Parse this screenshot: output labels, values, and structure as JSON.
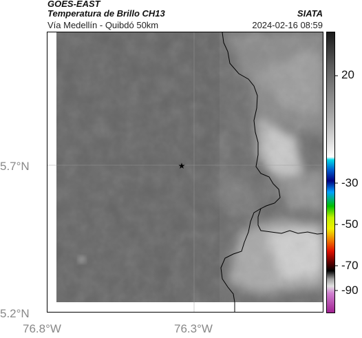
{
  "header": {
    "satellite": "GOES-EAST",
    "product": "Temperatura de Brillo CH13",
    "area": "Vía Medellín - Quibdó 50km",
    "organization": "SIATA",
    "timestamp": "2024-02-16 08:59"
  },
  "map": {
    "latitude_labels": [
      "5.7°N",
      "5.2°N"
    ],
    "longitude_labels": [
      "76.8°W",
      "76.3°W"
    ],
    "marker": {
      "icon": "star-icon",
      "lat": 5.7,
      "lon": -76.33
    }
  },
  "colorbar": {
    "tick_labels": [
      "20",
      "-30",
      "-50",
      "-70",
      "-90"
    ],
    "colors": [
      "#000000",
      "#b0b0b0",
      "#ffffff",
      "#00d0e0",
      "#0000a0",
      "#00a000",
      "#f0f000",
      "#e02000",
      "#000000",
      "#e0a0e0",
      "#a02090"
    ]
  },
  "colors": {
    "surface": "#6d6d6d",
    "cloud": "#cfcfcf",
    "border": "#000000"
  }
}
